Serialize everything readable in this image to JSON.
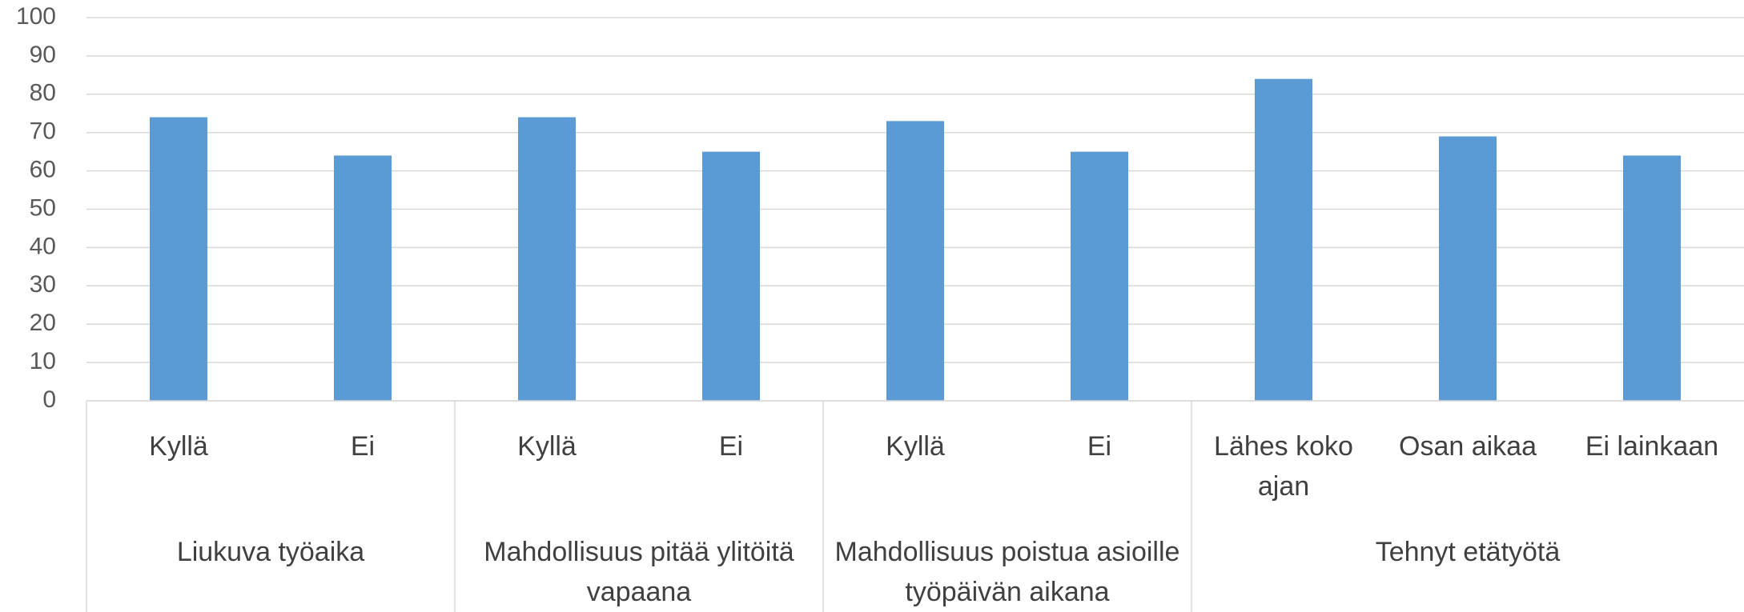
{
  "chart_data": {
    "type": "bar",
    "color": "#5b9bd5",
    "grid": true,
    "ylim": [
      0,
      100
    ],
    "yticks": [
      0,
      10,
      20,
      30,
      40,
      50,
      60,
      70,
      80,
      90,
      100
    ],
    "groups": [
      {
        "name": "Liukuva työaika",
        "categories": [
          "Kyllä",
          "Ei"
        ],
        "values": [
          74,
          64
        ]
      },
      {
        "name": "Mahdollisuus pitää ylitöitä vapaana",
        "categories": [
          "Kyllä",
          "Ei"
        ],
        "values": [
          74,
          65
        ]
      },
      {
        "name": "Mahdollisuus poistua asioille työpäivän aikana",
        "categories": [
          "Kyllä",
          "Ei"
        ],
        "values": [
          73,
          65
        ]
      },
      {
        "name": "Tehnyt etätyötä",
        "categories": [
          "Lähes koko ajan",
          "Osan aikaa",
          "Ei lainkaan"
        ],
        "values": [
          84,
          69,
          64
        ]
      }
    ]
  }
}
